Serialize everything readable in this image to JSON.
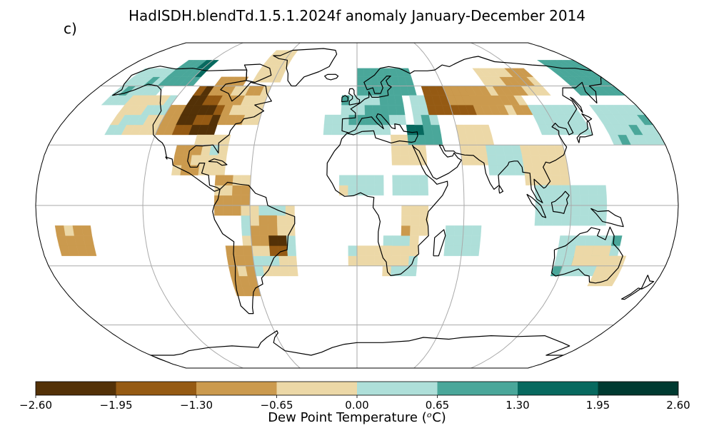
{
  "title": "HadISDH.blendTd.1.5.1.2024f anomaly January-December 2014",
  "panel_label": "c)",
  "colorbar": {
    "ticks": [
      "−2.60",
      "−1.95",
      "−1.30",
      "−0.65",
      "0.00",
      "0.65",
      "1.30",
      "1.95",
      "2.60"
    ],
    "label": "Dew Point Temperature (ᵒC)",
    "bins": [
      {
        "min": -2.6,
        "max": -1.95,
        "color": "#533107"
      },
      {
        "min": -1.95,
        "max": -1.3,
        "color": "#955a13"
      },
      {
        "min": -1.3,
        "max": -0.65,
        "color": "#cb9a4e"
      },
      {
        "min": -0.65,
        "max": 0.0,
        "color": "#ecd8a7"
      },
      {
        "min": 0.0,
        "max": 0.65,
        "color": "#aedfd9"
      },
      {
        "min": 0.65,
        "max": 1.3,
        "color": "#4aa79a"
      },
      {
        "min": 1.3,
        "max": 1.95,
        "color": "#07695f"
      },
      {
        "min": 1.95,
        "max": 2.6,
        "color": "#003a31"
      }
    ]
  },
  "map": {
    "projection": "robinson",
    "gridlines": {
      "lon_step": 60,
      "lat_values": [
        -60,
        -30,
        0,
        30,
        60
      ]
    },
    "coastlines": true
  }
}
